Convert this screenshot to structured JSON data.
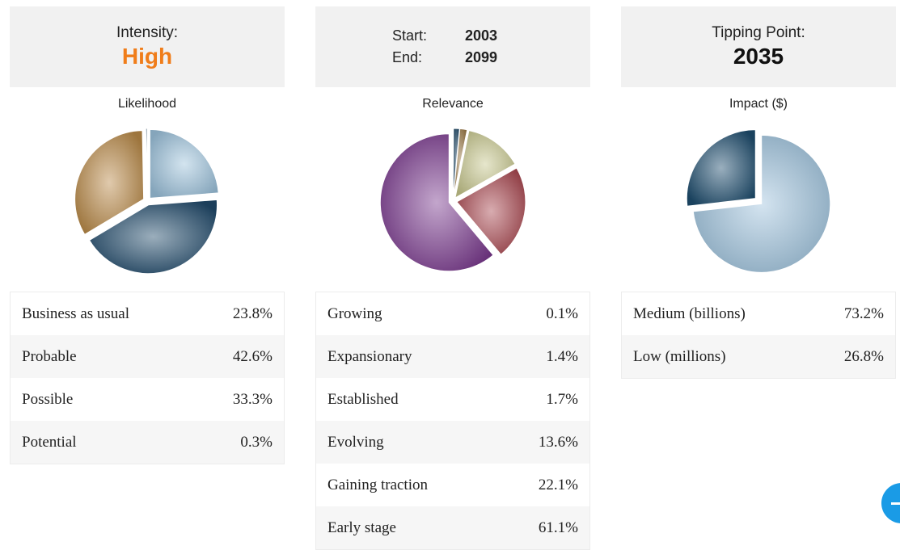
{
  "header": {
    "intensity": {
      "label": "Intensity:",
      "value": "High"
    },
    "dates": {
      "start_label": "Start:",
      "start_value": "2003",
      "end_label": "End:",
      "end_value": "2099"
    },
    "tipping": {
      "label": "Tipping Point:",
      "value": "2035"
    }
  },
  "charts": [
    {
      "title": "Likelihood",
      "rows": [
        {
          "label": "Business as usual",
          "value": "23.8%"
        },
        {
          "label": "Probable",
          "value": "42.6%"
        },
        {
          "label": "Possible",
          "value": "33.3%"
        },
        {
          "label": "Potential",
          "value": "0.3%"
        }
      ],
      "slices": [
        23.8,
        42.6,
        33.3,
        0.3
      ],
      "colors": [
        "#9dc2dc",
        "#214a6b",
        "#b98a48",
        "#2a4f6a"
      ]
    },
    {
      "title": "Relevance",
      "rows": [
        {
          "label": "Growing",
          "value": "0.1%"
        },
        {
          "label": "Expansionary",
          "value": "1.4%"
        },
        {
          "label": "Established",
          "value": "1.7%"
        },
        {
          "label": "Evolving",
          "value": "13.6%"
        },
        {
          "label": "Gaining traction",
          "value": "22.1%"
        },
        {
          "label": "Early stage",
          "value": "61.1%"
        }
      ],
      "slices": [
        0.1,
        1.4,
        1.7,
        13.6,
        22.1,
        61.1
      ],
      "colors": [
        "#777777",
        "#234b69",
        "#9c7c49",
        "#c7c78d",
        "#a8474f",
        "#7a3a8e"
      ]
    },
    {
      "title": "Impact ($)",
      "rows": [
        {
          "label": "Medium (billions)",
          "value": "73.2%"
        },
        {
          "label": "Low (millions)",
          "value": "26.8%"
        }
      ],
      "slices": [
        73.2,
        26.8
      ],
      "colors": [
        "#9fc3dd",
        "#1f4e6e"
      ]
    }
  ],
  "fab": {
    "icon": "minus-icon"
  }
}
